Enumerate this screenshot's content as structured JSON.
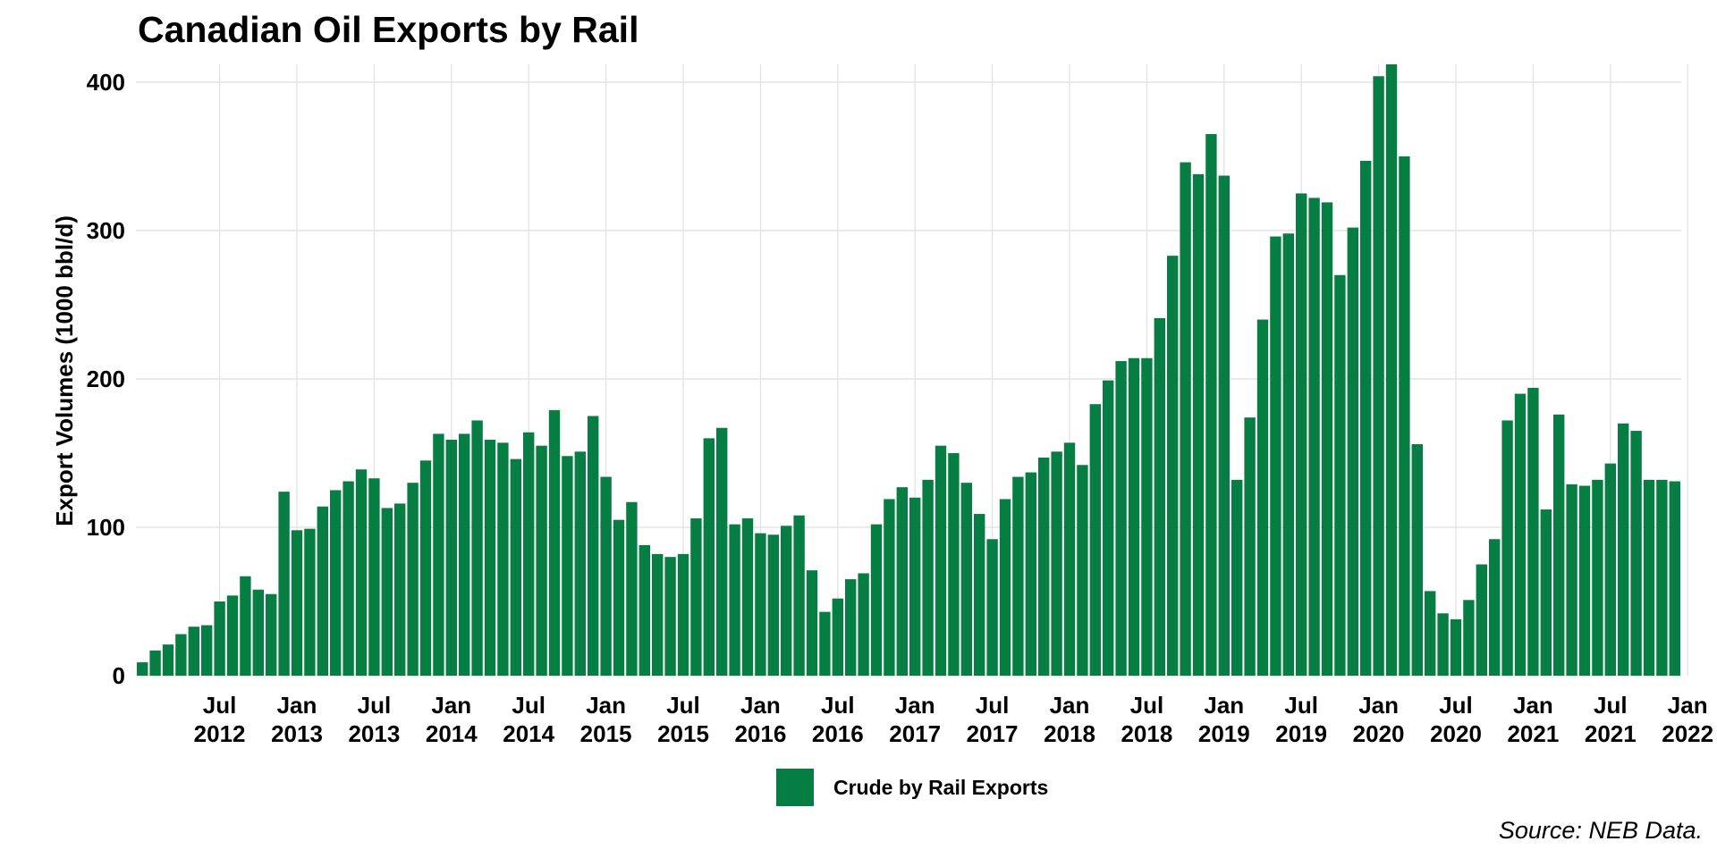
{
  "chart_data": {
    "type": "bar",
    "title": "Canadian Oil Exports by Rail",
    "ylabel": "Export Volumes (1000 bbl/d)",
    "xlabel": "",
    "caption": "Source: NEB Data.",
    "ylim": [
      0,
      412
    ],
    "yticks": [
      0,
      100,
      200,
      300,
      400
    ],
    "grid": true,
    "legend_position": "bottom",
    "bar_color": "#067d42",
    "series": [
      {
        "name": "Crude by Rail Exports",
        "start_month": "2012-01",
        "values": [
          9,
          17,
          21,
          28,
          33,
          34,
          50,
          54,
          67,
          58,
          55,
          124,
          98,
          99,
          114,
          125,
          131,
          139,
          133,
          113,
          116,
          130,
          145,
          163,
          159,
          163,
          172,
          159,
          157,
          146,
          164,
          155,
          179,
          148,
          151,
          175,
          134,
          105,
          117,
          88,
          82,
          80,
          82,
          106,
          160,
          167,
          102,
          106,
          96,
          95,
          101,
          108,
          71,
          43,
          52,
          65,
          69,
          102,
          119,
          127,
          120,
          132,
          155,
          150,
          130,
          109,
          92,
          119,
          134,
          137,
          147,
          151,
          157,
          142,
          183,
          199,
          212,
          214,
          214,
          241,
          283,
          346,
          338,
          365,
          337,
          132,
          174,
          240,
          296,
          298,
          325,
          322,
          319,
          270,
          302,
          347,
          404,
          412,
          350,
          156,
          57,
          42,
          38,
          51,
          75,
          92,
          172,
          190,
          194,
          112,
          176,
          129,
          128,
          132,
          143,
          170,
          165,
          132,
          132,
          131
        ]
      }
    ],
    "x_ticks": [
      {
        "month": "2012-07",
        "line1": "Jul",
        "line2": "2012"
      },
      {
        "month": "2013-01",
        "line1": "Jan",
        "line2": "2013"
      },
      {
        "month": "2013-07",
        "line1": "Jul",
        "line2": "2013"
      },
      {
        "month": "2014-01",
        "line1": "Jan",
        "line2": "2014"
      },
      {
        "month": "2014-07",
        "line1": "Jul",
        "line2": "2014"
      },
      {
        "month": "2015-01",
        "line1": "Jan",
        "line2": "2015"
      },
      {
        "month": "2015-07",
        "line1": "Jul",
        "line2": "2015"
      },
      {
        "month": "2016-01",
        "line1": "Jan",
        "line2": "2016"
      },
      {
        "month": "2016-07",
        "line1": "Jul",
        "line2": "2016"
      },
      {
        "month": "2017-01",
        "line1": "Jan",
        "line2": "2017"
      },
      {
        "month": "2017-07",
        "line1": "Jul",
        "line2": "2017"
      },
      {
        "month": "2018-01",
        "line1": "Jan",
        "line2": "2018"
      },
      {
        "month": "2018-07",
        "line1": "Jul",
        "line2": "2018"
      },
      {
        "month": "2019-01",
        "line1": "Jan",
        "line2": "2019"
      },
      {
        "month": "2019-07",
        "line1": "Jul",
        "line2": "2019"
      },
      {
        "month": "2020-01",
        "line1": "Jan",
        "line2": "2020"
      },
      {
        "month": "2020-07",
        "line1": "Jul",
        "line2": "2020"
      },
      {
        "month": "2021-01",
        "line1": "Jan",
        "line2": "2021"
      },
      {
        "month": "2021-07",
        "line1": "Jul",
        "line2": "2021"
      },
      {
        "month": "2022-01",
        "line1": "Jan",
        "line2": "2022"
      }
    ]
  }
}
